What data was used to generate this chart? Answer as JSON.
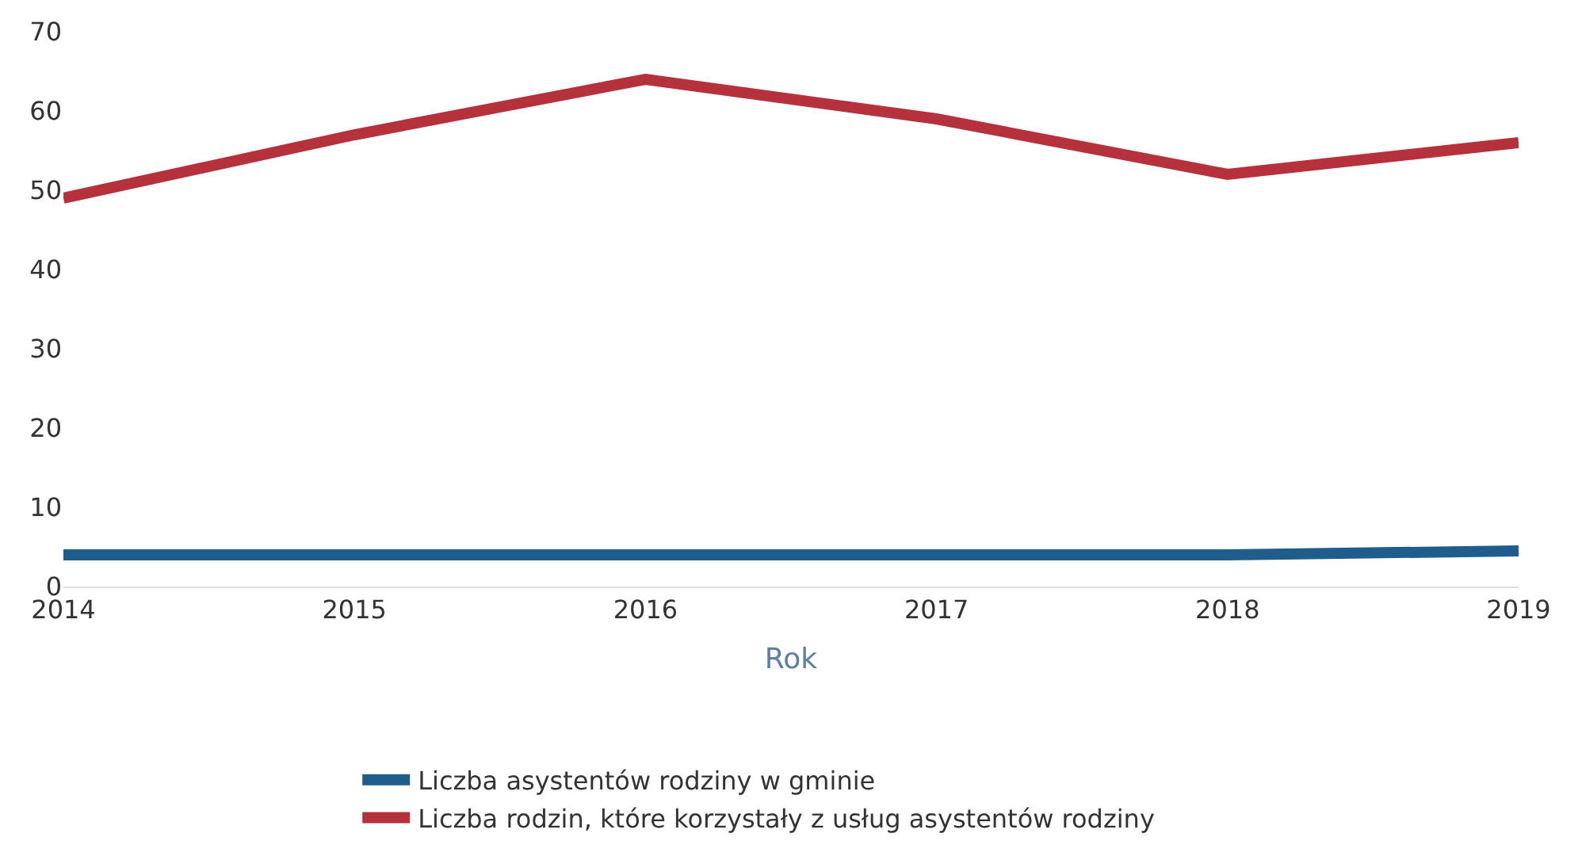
{
  "chart_data": {
    "type": "line",
    "xlabel": "Rok",
    "x": [
      2014,
      2015,
      2016,
      2017,
      2018,
      2019
    ],
    "xlim": [
      2014,
      2019
    ],
    "xticks": [
      2014,
      2015,
      2016,
      2017,
      2018,
      2019
    ],
    "ylim": [
      0,
      70
    ],
    "yticks": [
      0,
      10,
      20,
      30,
      40,
      50,
      60,
      70
    ],
    "grid": false,
    "legend": "bottom",
    "marker": "none",
    "line_style": "solid",
    "series": [
      {
        "name": "Liczba asystentów rodziny w gminie",
        "color": "#1f5d8c",
        "values": [
          4,
          4,
          4,
          4,
          4,
          4.5
        ]
      },
      {
        "name": "Liczba rodzin, które korzystały z usług asystentów rodziny",
        "color": "#b5323c",
        "values": [
          49,
          57,
          64,
          59,
          52,
          56
        ]
      }
    ]
  }
}
